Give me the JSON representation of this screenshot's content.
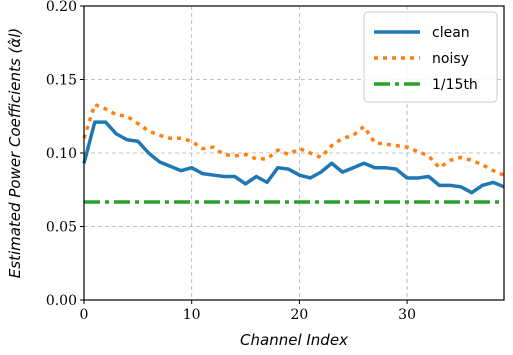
{
  "chart_data": {
    "type": "line",
    "title": "",
    "xlabel": "Channel Index",
    "ylabel": "Estimated Power Coefficients (α̂l)",
    "xlim": [
      0,
      39
    ],
    "ylim": [
      0,
      0.2
    ],
    "x_ticks": [
      0,
      10,
      20,
      30
    ],
    "x_tick_labels": [
      "0",
      "10",
      "20",
      "30"
    ],
    "y_ticks": [
      0,
      0.05,
      0.1,
      0.15,
      0.2
    ],
    "y_tick_labels": [
      "0.00",
      "0.05",
      "0.10",
      "0.15",
      "0.20"
    ],
    "grid": true,
    "legend_position": "top-right",
    "x": [
      0,
      1,
      2,
      3,
      4,
      5,
      6,
      7,
      8,
      9,
      10,
      11,
      12,
      13,
      14,
      15,
      16,
      17,
      18,
      19,
      20,
      21,
      22,
      23,
      24,
      25,
      26,
      27,
      28,
      29,
      30,
      31,
      32,
      33,
      34,
      35,
      36,
      37,
      38,
      39
    ],
    "series": [
      {
        "name": "clean",
        "color": "#1f77b4",
        "style": "solid",
        "values": [
          0.093,
          0.121,
          0.121,
          0.113,
          0.109,
          0.108,
          0.1,
          0.094,
          0.091,
          0.088,
          0.09,
          0.086,
          0.085,
          0.084,
          0.084,
          0.079,
          0.084,
          0.08,
          0.09,
          0.089,
          0.085,
          0.083,
          0.087,
          0.093,
          0.087,
          0.09,
          0.093,
          0.09,
          0.09,
          0.089,
          0.083,
          0.083,
          0.084,
          0.078,
          0.078,
          0.077,
          0.073,
          0.078,
          0.08,
          0.077
        ]
      },
      {
        "name": "noisy",
        "color": "#ff7f0e",
        "style": "dotted",
        "values": [
          0.11,
          0.133,
          0.13,
          0.126,
          0.125,
          0.12,
          0.115,
          0.112,
          0.11,
          0.11,
          0.108,
          0.103,
          0.104,
          0.099,
          0.098,
          0.099,
          0.096,
          0.096,
          0.102,
          0.099,
          0.103,
          0.1,
          0.097,
          0.105,
          0.11,
          0.112,
          0.118,
          0.107,
          0.106,
          0.105,
          0.104,
          0.101,
          0.098,
          0.09,
          0.095,
          0.097,
          0.095,
          0.092,
          0.088,
          0.085
        ]
      },
      {
        "name": "1/15th",
        "color": "#2ca02c",
        "style": "dashdot",
        "values": [
          0.0667,
          0.0667,
          0.0667,
          0.0667,
          0.0667,
          0.0667,
          0.0667,
          0.0667,
          0.0667,
          0.0667,
          0.0667,
          0.0667,
          0.0667,
          0.0667,
          0.0667,
          0.0667,
          0.0667,
          0.0667,
          0.0667,
          0.0667,
          0.0667,
          0.0667,
          0.0667,
          0.0667,
          0.0667,
          0.0667,
          0.0667,
          0.0667,
          0.0667,
          0.0667,
          0.0667,
          0.0667,
          0.0667,
          0.0667,
          0.0667,
          0.0667,
          0.0667,
          0.0667,
          0.0667,
          0.0667
        ]
      }
    ]
  }
}
